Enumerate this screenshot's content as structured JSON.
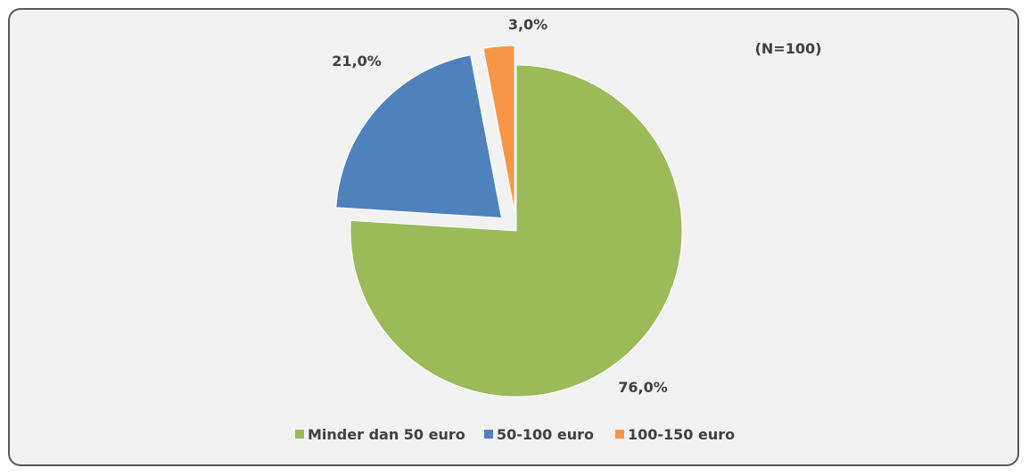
{
  "chart_data": {
    "type": "pie",
    "title": "",
    "annotation": "(N=100)",
    "exploded": true,
    "legend_position": "bottom",
    "slices": [
      {
        "label": "Minder dan 50 euro",
        "value": 76.0,
        "display": "76,0%",
        "color": "#9bbb59"
      },
      {
        "label": "50-100 euro",
        "value": 21.0,
        "display": "21,0%",
        "color": "#4f81bd"
      },
      {
        "label": "100-150 euro",
        "value": 3.0,
        "display": "3,0%",
        "color": "#f79646"
      }
    ]
  }
}
